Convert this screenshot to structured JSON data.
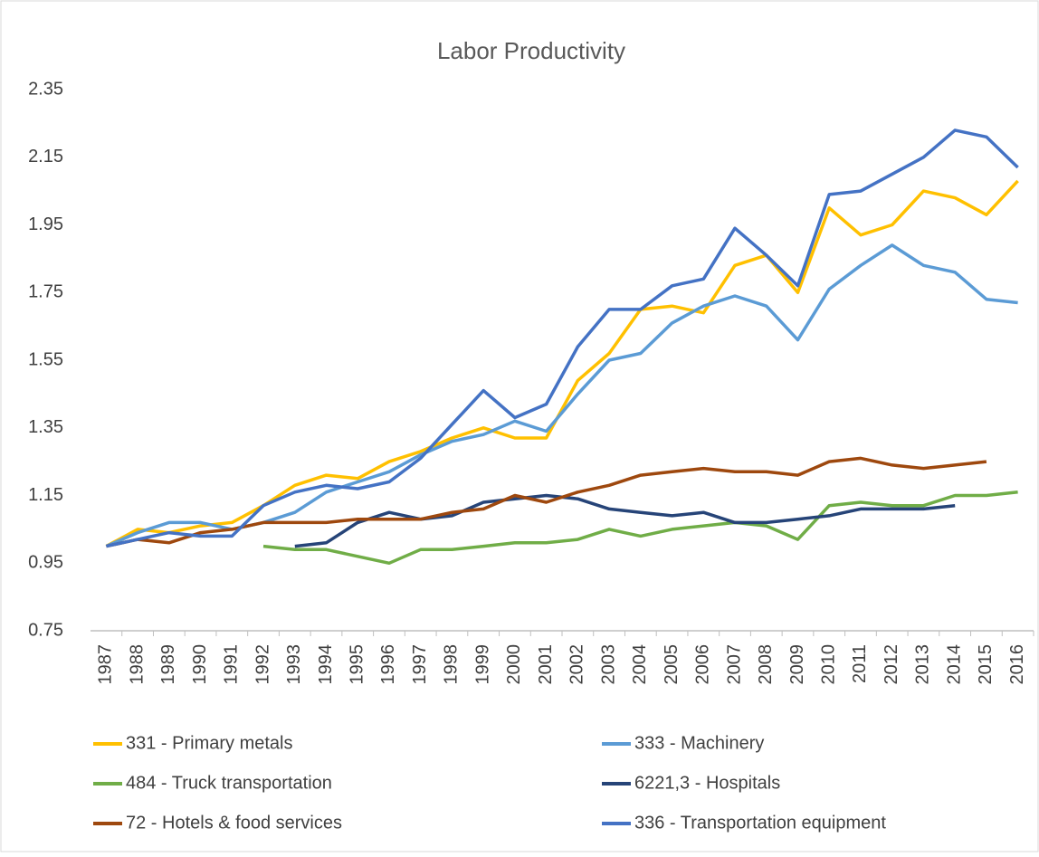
{
  "chart_data": {
    "type": "line",
    "title": "Labor Productivity",
    "categories": [
      "1987",
      "1988",
      "1989",
      "1990",
      "1991",
      "1992",
      "1993",
      "1994",
      "1995",
      "1996",
      "1997",
      "1998",
      "1999",
      "2000",
      "2001",
      "2002",
      "2003",
      "2004",
      "2005",
      "2006",
      "2007",
      "2008",
      "2009",
      "2010",
      "2011",
      "2012",
      "2013",
      "2014",
      "2015",
      "2016"
    ],
    "series": [
      {
        "name": "331 - Primary metals",
        "color": "#FFC000",
        "values": [
          1.0,
          1.05,
          1.04,
          1.06,
          1.07,
          1.12,
          1.18,
          1.21,
          1.2,
          1.25,
          1.28,
          1.32,
          1.35,
          1.32,
          1.32,
          1.49,
          1.57,
          1.7,
          1.71,
          1.69,
          1.83,
          1.86,
          1.75,
          2.0,
          1.92,
          1.95,
          2.05,
          2.03,
          1.98,
          2.08
        ]
      },
      {
        "name": "333 - Machinery",
        "color": "#5B9BD5",
        "values": [
          1.0,
          1.04,
          1.07,
          1.07,
          1.05,
          1.07,
          1.1,
          1.16,
          1.19,
          1.22,
          1.27,
          1.31,
          1.33,
          1.37,
          1.34,
          1.45,
          1.55,
          1.57,
          1.66,
          1.71,
          1.74,
          1.71,
          1.61,
          1.76,
          1.83,
          1.89,
          1.83,
          1.81,
          1.73,
          1.72
        ]
      },
      {
        "name": "484 - Truck transportation",
        "color": "#70AD47",
        "values": [
          null,
          null,
          null,
          null,
          null,
          1.0,
          0.99,
          0.99,
          0.97,
          0.95,
          0.99,
          0.99,
          1.0,
          1.01,
          1.01,
          1.02,
          1.05,
          1.03,
          1.05,
          1.06,
          1.07,
          1.06,
          1.02,
          1.12,
          1.13,
          1.12,
          1.12,
          1.15,
          1.15,
          1.16
        ]
      },
      {
        "name": "6221,3 - Hospitals",
        "color": "#264478",
        "values": [
          null,
          null,
          null,
          null,
          null,
          null,
          1.0,
          1.01,
          1.07,
          1.1,
          1.08,
          1.09,
          1.13,
          1.14,
          1.15,
          1.14,
          1.11,
          1.1,
          1.09,
          1.1,
          1.07,
          1.07,
          1.08,
          1.09,
          1.11,
          1.11,
          1.11,
          1.12,
          null,
          null
        ]
      },
      {
        "name": "72 - Hotels & food services",
        "color": "#9E480E",
        "values": [
          1.0,
          1.02,
          1.01,
          1.04,
          1.05,
          1.07,
          1.07,
          1.07,
          1.08,
          1.08,
          1.08,
          1.1,
          1.11,
          1.15,
          1.13,
          1.16,
          1.18,
          1.21,
          1.22,
          1.23,
          1.22,
          1.22,
          1.21,
          1.25,
          1.26,
          1.24,
          1.23,
          1.24,
          1.25,
          null
        ]
      },
      {
        "name": "336 - Transportation equipment",
        "color": "#4472C4",
        "values": [
          1.0,
          1.02,
          1.04,
          1.03,
          1.03,
          1.12,
          1.16,
          1.18,
          1.17,
          1.19,
          1.26,
          1.36,
          1.46,
          1.38,
          1.42,
          1.59,
          1.7,
          1.7,
          1.77,
          1.79,
          1.94,
          1.86,
          1.77,
          2.04,
          2.05,
          2.1,
          2.15,
          2.23,
          2.21,
          2.12
        ]
      }
    ],
    "ylim": [
      0.75,
      2.35
    ],
    "yticks": [
      0.75,
      0.95,
      1.15,
      1.35,
      1.55,
      1.75,
      1.95,
      2.15,
      2.35
    ],
    "grid": false,
    "legend": "bottom"
  }
}
